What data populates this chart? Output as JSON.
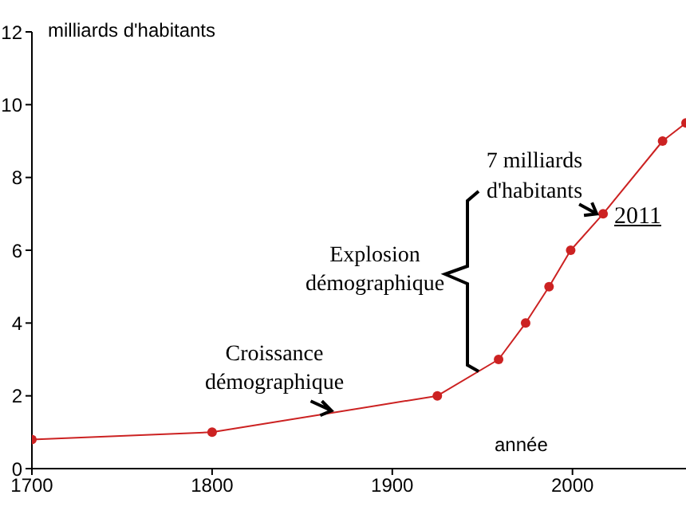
{
  "chart_data": {
    "type": "line",
    "ylabel": "milliards d'habitants",
    "xlabel": "année",
    "x": [
      1700,
      1800,
      1925,
      1959,
      1974,
      1987,
      1999,
      2017,
      2050,
      2063
    ],
    "series": [
      {
        "color": "#cc2222",
        "values": [
          0.8,
          1.0,
          2.0,
          3.0,
          4.0,
          5.0,
          6.0,
          7.0,
          9.0,
          9.5
        ]
      }
    ],
    "xlim": [
      1700,
      2063
    ],
    "ylim": [
      0,
      12
    ],
    "xticks": [
      1700,
      1800,
      1900,
      2000
    ],
    "yticks": [
      0,
      2,
      4,
      6,
      8,
      10,
      12
    ],
    "marker": "circle",
    "line_style": "solid",
    "annotations": [
      {
        "text": "Croissance démographique",
        "x": 1868,
        "y": 1.55
      },
      "Explosion démographique",
      {
        "text": "7 milliards d'habitants",
        "x": 2017,
        "y": 7
      },
      "2011"
    ]
  }
}
